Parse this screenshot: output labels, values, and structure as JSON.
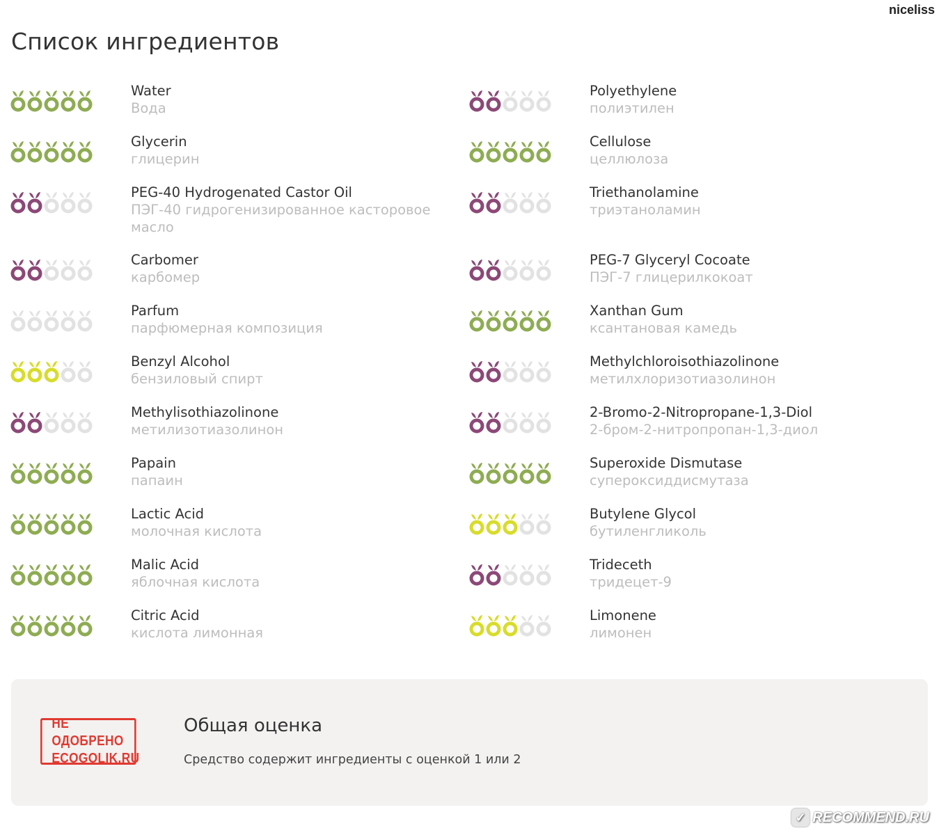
{
  "header": {
    "username": "niceliss",
    "title": "Список ингредиентов"
  },
  "colors": {
    "green": "#8eac52",
    "purple": "#8c4877",
    "yellow": "#d8dc2a",
    "empty": "#e2e2e2"
  },
  "left_column": [
    {
      "en": "Water",
      "ru": "Вода",
      "score": 5,
      "color": "green"
    },
    {
      "en": "Glycerin",
      "ru": "глицерин",
      "score": 5,
      "color": "green"
    },
    {
      "en": "PEG-40 Hydrogenated Castor Oil",
      "ru": "ПЭГ-40 гидрогенизированное касторовое масло",
      "score": 2,
      "color": "purple"
    },
    {
      "en": "Carbomer",
      "ru": "карбомер",
      "score": 2,
      "color": "purple"
    },
    {
      "en": "Parfum",
      "ru": "парфюмерная композиция",
      "score": 0,
      "color": "empty"
    },
    {
      "en": "Benzyl Alcohol",
      "ru": "бензиловый спирт",
      "score": 3,
      "color": "yellow"
    },
    {
      "en": "Methylisothiazolinone",
      "ru": "метилизотиазолинон",
      "score": 2,
      "color": "purple"
    },
    {
      "en": "Papain",
      "ru": "папаин",
      "score": 5,
      "color": "green"
    },
    {
      "en": "Lactic Acid",
      "ru": "молочная кислота",
      "score": 5,
      "color": "green"
    },
    {
      "en": "Malic Acid",
      "ru": "яблочная кислота",
      "score": 5,
      "color": "green"
    },
    {
      "en": "Citric Acid",
      "ru": "кислота лимонная",
      "score": 5,
      "color": "green"
    }
  ],
  "right_column": [
    {
      "en": "Polyethylene",
      "ru": "полиэтилен",
      "score": 2,
      "color": "purple"
    },
    {
      "en": "Cellulose",
      "ru": "целлюлоза",
      "score": 5,
      "color": "green"
    },
    {
      "en": "Triethanolamine",
      "ru": "триэтаноламин",
      "score": 2,
      "color": "purple"
    },
    {
      "en": "PEG-7 Glyceryl Cocoate",
      "ru": "ПЭГ-7 глицерилкокоат",
      "score": 2,
      "color": "purple"
    },
    {
      "en": "Xanthan Gum",
      "ru": "ксантановая камедь",
      "score": 5,
      "color": "green"
    },
    {
      "en": "Methylchloroisothiazolinone",
      "ru": "метилхлоризотиазолинон",
      "score": 2,
      "color": "purple"
    },
    {
      "en": "2-Bromo-2-Nitropropane-1,3-Diol",
      "ru": "2-бром-2-нитропропан-1,3-диол",
      "score": 2,
      "color": "purple"
    },
    {
      "en": "Superoxide Dismutase",
      "ru": "супероксиддисмутаза",
      "score": 5,
      "color": "green"
    },
    {
      "en": "Butylene Glycol",
      "ru": "бутиленгликоль",
      "score": 3,
      "color": "yellow"
    },
    {
      "en": "Trideceth",
      "ru": "тридецет-9",
      "score": 2,
      "color": "purple"
    },
    {
      "en": "Limonene",
      "ru": "лимонен",
      "score": 3,
      "color": "yellow"
    }
  ],
  "summary": {
    "stamp_line1": "НЕ ОДОБРЕНО",
    "stamp_line2": "ECOGOLIK.RU",
    "title": "Общая оценка",
    "text": "Средство содержит ингредиенты с оценкой 1 или 2"
  },
  "watermark": {
    "text": "RECOMMEND.RU",
    "icon": "recommend-logo-icon"
  }
}
